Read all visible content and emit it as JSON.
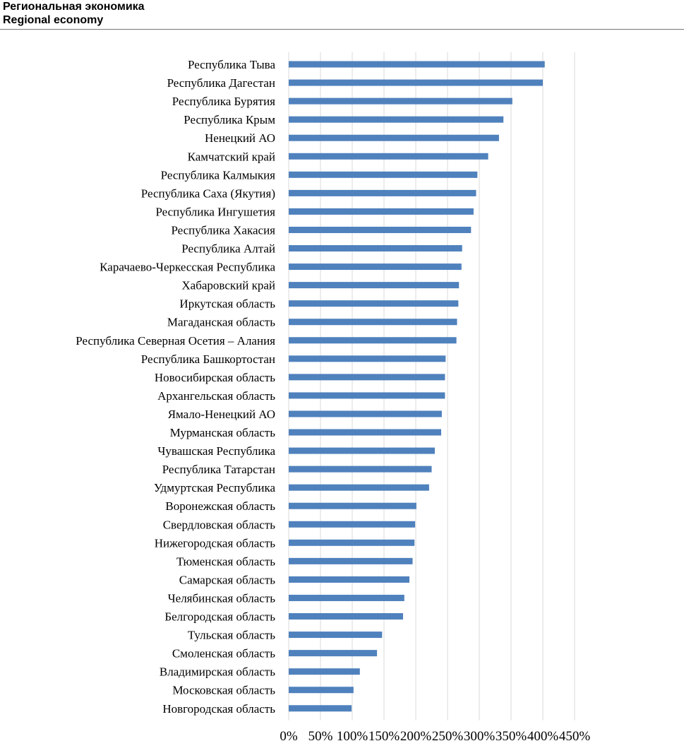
{
  "header": {
    "title_ru": "Региональная экономика",
    "title_en": "Regional economy"
  },
  "chart_data": {
    "type": "bar",
    "orientation": "horizontal",
    "categories": [
      "Республика Тыва",
      "Республика Дагестан",
      "Республика Бурятия",
      "Республика Крым",
      "Ненецкий АО",
      "Камчатский край",
      "Республика Калмыкия",
      "Республика Саха (Якутия)",
      "Республика Ингушетия",
      "Республика Хакасия",
      "Республика Алтай",
      "Карачаево-Черкесская Республика",
      "Хабаровский край",
      "Иркутская область",
      "Магаданская область",
      "Республика Северная Осетия – Алания",
      "Республика Башкортостан",
      "Новосибирская область",
      "Архангельская область",
      "Ямало-Ненецкий АО",
      "Мурманская область",
      "Чувашская Республика",
      "Республика Татарстан",
      "Удмуртская Республика",
      "Воронежская область",
      "Свердловская область",
      "Нижегородская область",
      "Тюменская область",
      "Самарская область",
      "Челябинская область",
      "Белгородская область",
      "Тульская область",
      "Смоленская область",
      "Владимирская область",
      "Московская область",
      "Новгородская область"
    ],
    "values": [
      403,
      400,
      352,
      338,
      331,
      314,
      297,
      295,
      291,
      287,
      273,
      272,
      268,
      267,
      265,
      264,
      247,
      246,
      246,
      241,
      240,
      230,
      225,
      221,
      201,
      199,
      198,
      195,
      190,
      182,
      180,
      147,
      139,
      112,
      102,
      99
    ],
    "unit": "%",
    "xlim": [
      0,
      450
    ],
    "xticks": [
      0,
      50,
      100,
      150,
      200,
      250,
      300,
      350,
      400,
      450
    ],
    "xtick_labels": [
      "0%",
      "50%",
      "100%",
      "150%",
      "200%",
      "250%",
      "300%",
      "350%",
      "400%",
      "450%"
    ],
    "grid": true,
    "legend": "none",
    "bar_color": "#4F81BD",
    "grid_color": "#D9D9D9"
  }
}
